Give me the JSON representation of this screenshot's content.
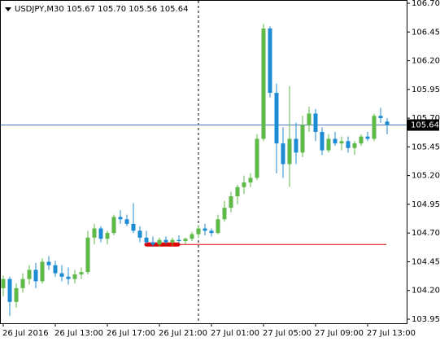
{
  "chart_data": {
    "type": "candlestick",
    "title": "USDJPY,M30  105.67 105.70 105.56 105.64",
    "categories": [
      "26 Jul 2016",
      null,
      null,
      null,
      null,
      null,
      null,
      null,
      "26 Jul 13:00",
      null,
      null,
      null,
      null,
      null,
      null,
      null,
      "26 Jul 17:00",
      null,
      null,
      null,
      null,
      null,
      null,
      null,
      "26 Jul 21:00",
      null,
      null,
      null,
      null,
      null,
      null,
      null,
      "27 Jul 01:00",
      null,
      null,
      null,
      null,
      null,
      null,
      null,
      "27 Jul 05:00",
      null,
      null,
      null,
      null,
      null,
      null,
      null,
      "27 Jul 09:00",
      null,
      null,
      null,
      null,
      null,
      null,
      null,
      "27 Jul 13:00",
      null,
      null,
      null
    ],
    "open": [
      104.22,
      104.3,
      104.1,
      104.22,
      104.3,
      104.38,
      104.28,
      104.45,
      104.42,
      104.35,
      104.32,
      104.3,
      104.34,
      104.36,
      104.66,
      104.74,
      104.65,
      104.7,
      104.84,
      104.82,
      104.78,
      104.72,
      104.66,
      104.62,
      104.6,
      104.64,
      104.62,
      104.64,
      104.63,
      104.65,
      104.69,
      104.74,
      104.72,
      104.7,
      104.82,
      104.92,
      105.02,
      105.1,
      105.14,
      105.18,
      105.52,
      106.48,
      105.92,
      105.48,
      105.3,
      105.52,
      105.4,
      105.64,
      105.74,
      105.58,
      105.42,
      105.52,
      105.48,
      105.5,
      105.44,
      105.48,
      105.54,
      105.52,
      105.72,
      105.67
    ],
    "high": [
      104.33,
      104.32,
      104.26,
      104.35,
      104.42,
      104.44,
      104.48,
      104.5,
      104.46,
      104.42,
      104.4,
      104.38,
      104.4,
      104.72,
      104.78,
      104.76,
      104.72,
      104.86,
      104.9,
      104.86,
      104.96,
      104.76,
      104.72,
      104.67,
      104.66,
      104.67,
      104.66,
      104.68,
      104.66,
      104.71,
      104.76,
      104.78,
      104.74,
      104.86,
      104.98,
      105.06,
      105.12,
      105.2,
      105.22,
      105.56,
      106.52,
      106.5,
      106.0,
      105.62,
      105.98,
      105.66,
      105.72,
      105.8,
      105.78,
      105.62,
      105.56,
      105.58,
      105.54,
      105.54,
      105.5,
      105.56,
      105.58,
      105.74,
      105.79,
      105.7
    ],
    "low": [
      104.15,
      103.98,
      104.05,
      104.18,
      104.25,
      104.22,
      104.26,
      104.38,
      104.32,
      104.28,
      104.25,
      104.26,
      104.3,
      104.34,
      104.6,
      104.62,
      104.6,
      104.68,
      104.78,
      104.76,
      104.7,
      104.62,
      104.6,
      104.58,
      104.58,
      104.6,
      104.59,
      104.61,
      104.6,
      104.63,
      104.66,
      104.68,
      104.67,
      104.69,
      104.8,
      104.88,
      104.95,
      105.04,
      105.1,
      105.16,
      105.5,
      105.88,
      105.22,
      105.18,
      105.1,
      105.3,
      105.36,
      105.58,
      105.5,
      105.38,
      105.4,
      105.46,
      105.42,
      105.4,
      105.38,
      105.46,
      105.5,
      105.5,
      105.66,
      105.56
    ],
    "close": [
      104.3,
      104.1,
      104.22,
      104.3,
      104.38,
      104.28,
      104.45,
      104.42,
      104.35,
      104.32,
      104.3,
      104.34,
      104.36,
      104.66,
      104.74,
      104.65,
      104.7,
      104.84,
      104.82,
      104.78,
      104.72,
      104.66,
      104.62,
      104.6,
      104.64,
      104.62,
      104.64,
      104.63,
      104.65,
      104.69,
      104.74,
      104.72,
      104.7,
      104.82,
      104.92,
      105.02,
      105.1,
      105.14,
      105.18,
      105.52,
      106.48,
      105.92,
      105.48,
      105.3,
      105.52,
      105.4,
      105.64,
      105.74,
      105.58,
      105.42,
      105.52,
      105.48,
      105.5,
      105.44,
      105.48,
      105.54,
      105.52,
      105.72,
      105.7,
      105.64
    ],
    "up_color": "#5fb946",
    "down_color": "#1c8bd3",
    "ylim": [
      103.95,
      106.7
    ],
    "yticks": [
      {
        "value": 106.7,
        "label": "106.70"
      },
      {
        "value": 106.45,
        "label": "106.45"
      },
      {
        "value": 106.2,
        "label": "106.20"
      },
      {
        "value": 105.95,
        "label": "105.95"
      },
      {
        "value": 105.7,
        "label": "105.70"
      },
      {
        "value": 105.45,
        "label": "105.45"
      },
      {
        "value": 105.2,
        "label": "105.20"
      },
      {
        "value": 104.95,
        "label": "104.95"
      },
      {
        "value": 104.7,
        "label": "104.70"
      },
      {
        "value": 104.45,
        "label": "104.45"
      },
      {
        "value": 104.2,
        "label": "104.20"
      },
      {
        "value": 103.95,
        "label": "103.95"
      }
    ],
    "current_price": {
      "value": 105.64,
      "label": "105.64"
    },
    "support_level": 104.6
  }
}
